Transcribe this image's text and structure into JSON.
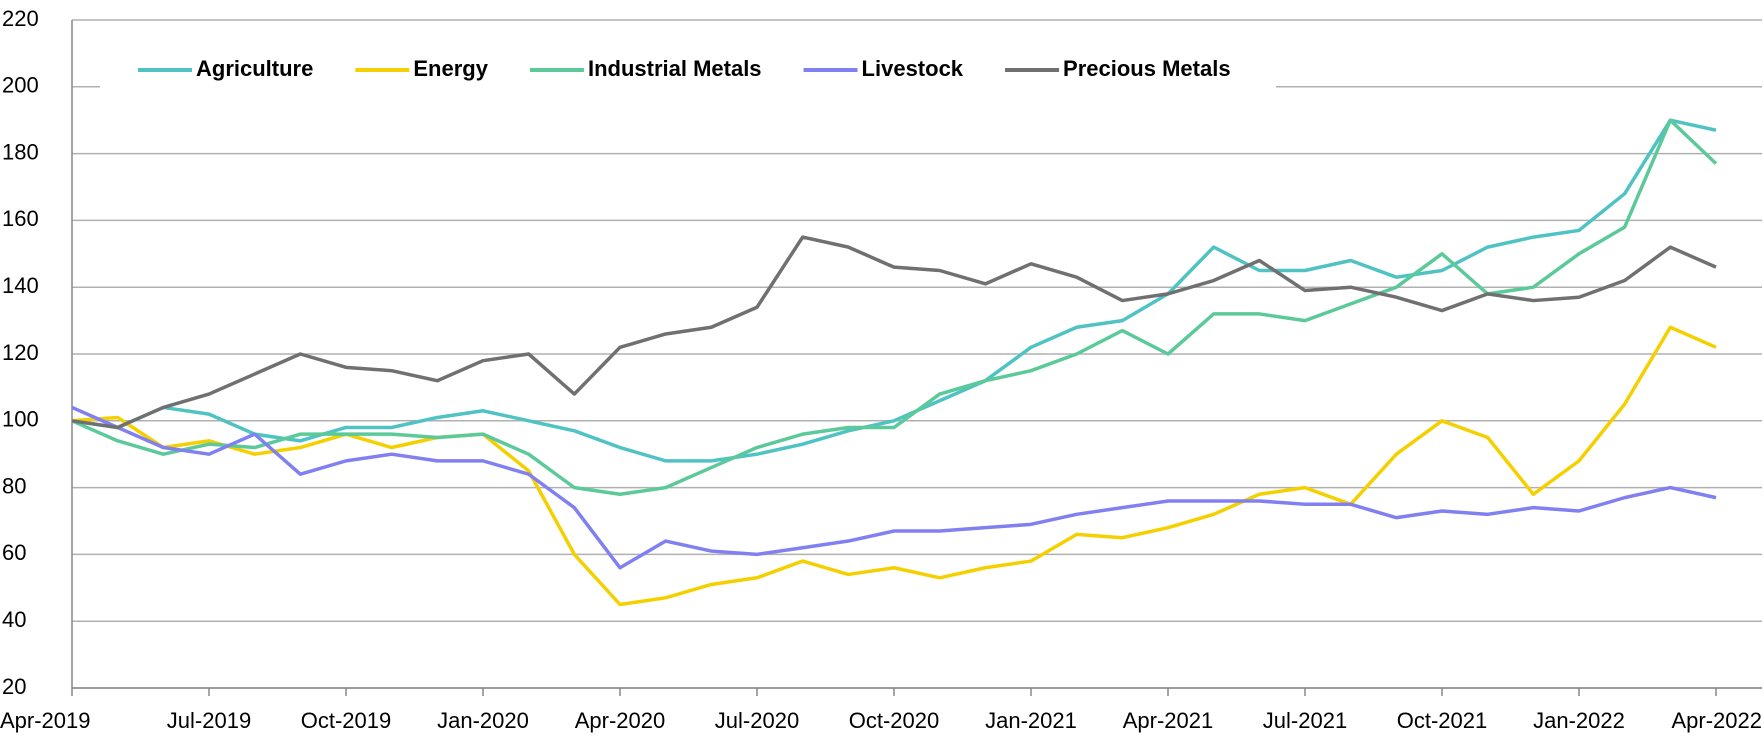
{
  "chart_data": {
    "type": "line",
    "x": [
      "2019-04",
      "2019-05",
      "2019-06",
      "2019-07",
      "2019-08",
      "2019-09",
      "2019-10",
      "2019-11",
      "2019-12",
      "2020-01",
      "2020-02",
      "2020-03",
      "2020-04",
      "2020-05",
      "2020-06",
      "2020-07",
      "2020-08",
      "2020-09",
      "2020-10",
      "2020-11",
      "2020-12",
      "2021-01",
      "2021-02",
      "2021-03",
      "2021-04",
      "2021-05",
      "2021-06",
      "2021-07",
      "2021-08",
      "2021-09",
      "2021-10",
      "2021-11",
      "2021-12",
      "2022-01",
      "2022-02",
      "2022-03",
      "2022-04"
    ],
    "series": [
      {
        "name": "Agriculture",
        "color": "#4fc3c3",
        "values": [
          100,
          98,
          104,
          102,
          96,
          94,
          98,
          98,
          101,
          103,
          100,
          97,
          92,
          88,
          88,
          90,
          93,
          97,
          100,
          106,
          112,
          122,
          128,
          130,
          138,
          152,
          145,
          145,
          148,
          143,
          145,
          152,
          155,
          157,
          168,
          190,
          187
        ]
      },
      {
        "name": "Energy",
        "color": "#f5d000",
        "values": [
          100,
          101,
          92,
          94,
          90,
          92,
          96,
          92,
          95,
          96,
          85,
          60,
          45,
          47,
          51,
          53,
          58,
          54,
          56,
          53,
          56,
          58,
          66,
          65,
          68,
          72,
          78,
          80,
          75,
          90,
          100,
          95,
          78,
          88,
          105,
          128,
          122
        ]
      },
      {
        "name": "Industrial Metals",
        "color": "#5cc99a",
        "values": [
          100,
          94,
          90,
          93,
          92,
          96,
          96,
          96,
          95,
          96,
          90,
          80,
          78,
          80,
          86,
          92,
          96,
          98,
          98,
          108,
          112,
          115,
          120,
          127,
          120,
          132,
          132,
          130,
          135,
          140,
          150,
          138,
          140,
          150,
          158,
          190,
          177
        ]
      },
      {
        "name": "Livestock",
        "color": "#8080f0",
        "values": [
          104,
          98,
          92,
          90,
          96,
          84,
          88,
          90,
          88,
          88,
          84,
          74,
          56,
          64,
          61,
          60,
          62,
          64,
          67,
          67,
          68,
          69,
          72,
          74,
          76,
          76,
          76,
          75,
          75,
          71,
          73,
          72,
          74,
          73,
          77,
          80,
          77
        ]
      },
      {
        "name": "Precious Metals",
        "color": "#707070",
        "values": [
          100,
          98,
          104,
          108,
          114,
          120,
          116,
          115,
          112,
          118,
          120,
          108,
          122,
          126,
          128,
          134,
          155,
          152,
          146,
          145,
          141,
          147,
          143,
          136,
          138,
          142,
          148,
          139,
          140,
          137,
          133,
          138,
          136,
          137,
          142,
          152,
          146
        ]
      }
    ],
    "xlim": [
      "2019-04",
      "2022-04"
    ],
    "xticks": [
      {
        "value": "2019-04",
        "label": "Apr-2019"
      },
      {
        "value": "2019-07",
        "label": "Jul-2019"
      },
      {
        "value": "2019-10",
        "label": "Oct-2019"
      },
      {
        "value": "2020-01",
        "label": "Jan-2020"
      },
      {
        "value": "2020-04",
        "label": "Apr-2020"
      },
      {
        "value": "2020-07",
        "label": "Jul-2020"
      },
      {
        "value": "2020-10",
        "label": "Oct-2020"
      },
      {
        "value": "2021-01",
        "label": "Jan-2021"
      },
      {
        "value": "2021-04",
        "label": "Apr-2021"
      },
      {
        "value": "2021-07",
        "label": "Jul-2021"
      },
      {
        "value": "2021-10",
        "label": "Oct-2021"
      },
      {
        "value": "2022-01",
        "label": "Jan-2022"
      },
      {
        "value": "2022-04",
        "label": "Apr-2022"
      }
    ],
    "ylim": [
      20,
      220
    ],
    "yticks": [
      20,
      40,
      60,
      80,
      100,
      120,
      140,
      160,
      180,
      200,
      220
    ],
    "grid": true,
    "legend": "top"
  }
}
